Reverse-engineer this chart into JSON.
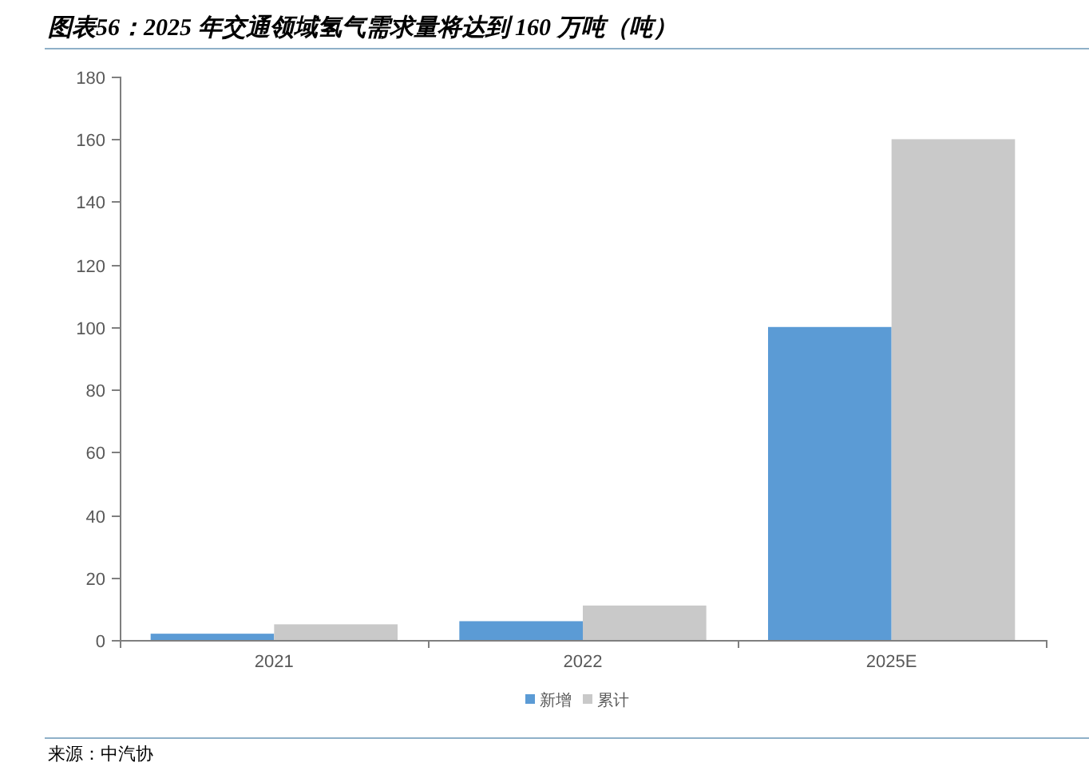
{
  "chart_data": {
    "type": "bar",
    "title": "图表56：2025 年交通领域氢气需求量将达到 160 万吨（吨）",
    "categories": [
      "2021",
      "2022",
      "2025E"
    ],
    "series": [
      {
        "name": "新增",
        "color": "#5b9bd5",
        "values": [
          2,
          6,
          100
        ]
      },
      {
        "name": "累计",
        "color": "#c9c9c9",
        "values": [
          5,
          11,
          160
        ]
      }
    ],
    "ylim": [
      0,
      180
    ],
    "yticks": [
      0,
      20,
      40,
      60,
      80,
      100,
      120,
      140,
      160,
      180
    ],
    "legend": "bottom",
    "annotations": [
      "来源：中汽协"
    ]
  }
}
